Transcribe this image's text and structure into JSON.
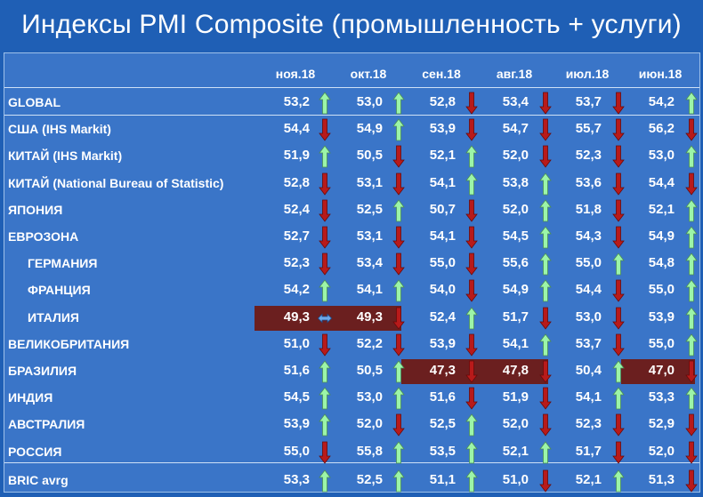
{
  "title": "Индексы PMI Composite (промышленность + услуги)",
  "chart_data": {
    "type": "table",
    "columns": [
      "ноя.18",
      "окт.18",
      "сен.18",
      "авг.18",
      "июл.18",
      "июн.18"
    ],
    "rows": [
      {
        "label": "GLOBAL",
        "indent": false,
        "values": [
          "53,2",
          "53,0",
          "52,8",
          "53,4",
          "53,7",
          "54,2"
        ],
        "dirs": [
          "up",
          "up",
          "down",
          "down",
          "down",
          "up"
        ],
        "highlight": [
          false,
          false,
          false,
          false,
          false,
          false
        ]
      },
      {
        "label": "США (IHS Markit)",
        "indent": false,
        "values": [
          "54,4",
          "54,9",
          "53,9",
          "54,7",
          "55,7",
          "56,2"
        ],
        "dirs": [
          "down",
          "up",
          "down",
          "down",
          "down",
          "down"
        ],
        "highlight": [
          false,
          false,
          false,
          false,
          false,
          false
        ]
      },
      {
        "label": "КИТАЙ (IHS Markit)",
        "indent": false,
        "values": [
          "51,9",
          "50,5",
          "52,1",
          "52,0",
          "52,3",
          "53,0"
        ],
        "dirs": [
          "up",
          "down",
          "up",
          "down",
          "down",
          "up"
        ],
        "highlight": [
          false,
          false,
          false,
          false,
          false,
          false
        ]
      },
      {
        "label": "КИТАЙ (National Bureau of Statistic)",
        "indent": false,
        "values": [
          "52,8",
          "53,1",
          "54,1",
          "53,8",
          "53,6",
          "54,4"
        ],
        "dirs": [
          "down",
          "down",
          "up",
          "up",
          "down",
          "down"
        ],
        "highlight": [
          false,
          false,
          false,
          false,
          false,
          false
        ]
      },
      {
        "label": "ЯПОНИЯ",
        "indent": false,
        "values": [
          "52,4",
          "52,5",
          "50,7",
          "52,0",
          "51,8",
          "52,1"
        ],
        "dirs": [
          "down",
          "up",
          "down",
          "up",
          "down",
          "up"
        ],
        "highlight": [
          false,
          false,
          false,
          false,
          false,
          false
        ]
      },
      {
        "label": "ЕВРОЗОНА",
        "indent": false,
        "values": [
          "52,7",
          "53,1",
          "54,1",
          "54,5",
          "54,3",
          "54,9"
        ],
        "dirs": [
          "down",
          "down",
          "down",
          "up",
          "down",
          "up"
        ],
        "highlight": [
          false,
          false,
          false,
          false,
          false,
          false
        ]
      },
      {
        "label": "ГЕРМАНИЯ",
        "indent": true,
        "values": [
          "52,3",
          "53,4",
          "55,0",
          "55,6",
          "55,0",
          "54,8"
        ],
        "dirs": [
          "down",
          "down",
          "down",
          "up",
          "up",
          "up"
        ],
        "highlight": [
          false,
          false,
          false,
          false,
          false,
          false
        ]
      },
      {
        "label": "ФРАНЦИЯ",
        "indent": true,
        "values": [
          "54,2",
          "54,1",
          "54,0",
          "54,9",
          "54,4",
          "55,0"
        ],
        "dirs": [
          "up",
          "up",
          "down",
          "up",
          "down",
          "up"
        ],
        "highlight": [
          false,
          false,
          false,
          false,
          false,
          false
        ]
      },
      {
        "label": "ИТАЛИЯ",
        "indent": true,
        "values": [
          "49,3",
          "49,3",
          "52,4",
          "51,7",
          "53,0",
          "53,9"
        ],
        "dirs": [
          "flat",
          "down",
          "up",
          "down",
          "down",
          "up"
        ],
        "highlight": [
          true,
          true,
          false,
          false,
          false,
          false
        ]
      },
      {
        "label": "ВЕЛИКОБРИТАНИЯ",
        "indent": false,
        "values": [
          "51,0",
          "52,2",
          "53,9",
          "54,1",
          "53,7",
          "55,0"
        ],
        "dirs": [
          "down",
          "down",
          "down",
          "up",
          "down",
          "up"
        ],
        "highlight": [
          false,
          false,
          false,
          false,
          false,
          false
        ]
      },
      {
        "label": "БРАЗИЛИЯ",
        "indent": false,
        "values": [
          "51,6",
          "50,5",
          "47,3",
          "47,8",
          "50,4",
          "47,0"
        ],
        "dirs": [
          "up",
          "up",
          "down",
          "down",
          "up",
          "down"
        ],
        "highlight": [
          false,
          false,
          true,
          true,
          false,
          true
        ]
      },
      {
        "label": "ИНДИЯ",
        "indent": false,
        "values": [
          "54,5",
          "53,0",
          "51,6",
          "51,9",
          "54,1",
          "53,3"
        ],
        "dirs": [
          "up",
          "up",
          "down",
          "down",
          "up",
          "up"
        ],
        "highlight": [
          false,
          false,
          false,
          false,
          false,
          false
        ]
      },
      {
        "label": "АВСТРАЛИЯ",
        "indent": false,
        "values": [
          "53,9",
          "52,0",
          "52,5",
          "52,0",
          "52,3",
          "52,9"
        ],
        "dirs": [
          "up",
          "down",
          "up",
          "down",
          "down",
          "down"
        ],
        "highlight": [
          false,
          false,
          false,
          false,
          false,
          false
        ]
      },
      {
        "label": "РОССИЯ",
        "indent": false,
        "values": [
          "55,0",
          "55,8",
          "53,5",
          "52,1",
          "51,7",
          "52,0"
        ],
        "dirs": [
          "down",
          "up",
          "up",
          "up",
          "down",
          "down"
        ],
        "highlight": [
          false,
          false,
          false,
          false,
          false,
          false
        ]
      },
      {
        "label": "BRIC avrg",
        "indent": false,
        "values": [
          "53,3",
          "52,5",
          "51,1",
          "51,0",
          "52,1",
          "51,3"
        ],
        "dirs": [
          "up",
          "up",
          "up",
          "down",
          "up",
          "down"
        ],
        "highlight": [
          false,
          false,
          false,
          false,
          false,
          false
        ]
      }
    ]
  },
  "colors": {
    "background": "#1f5fb5",
    "panel": "#3a75c8",
    "highlight": "#6b1f1f",
    "arrow_up": "#9cf5a8",
    "arrow_down": "#b81a1a",
    "arrow_flat": "#6ea8e8"
  },
  "icons": {
    "up": "arrow-up-icon",
    "down": "arrow-down-icon",
    "flat": "arrow-left-right-icon"
  }
}
